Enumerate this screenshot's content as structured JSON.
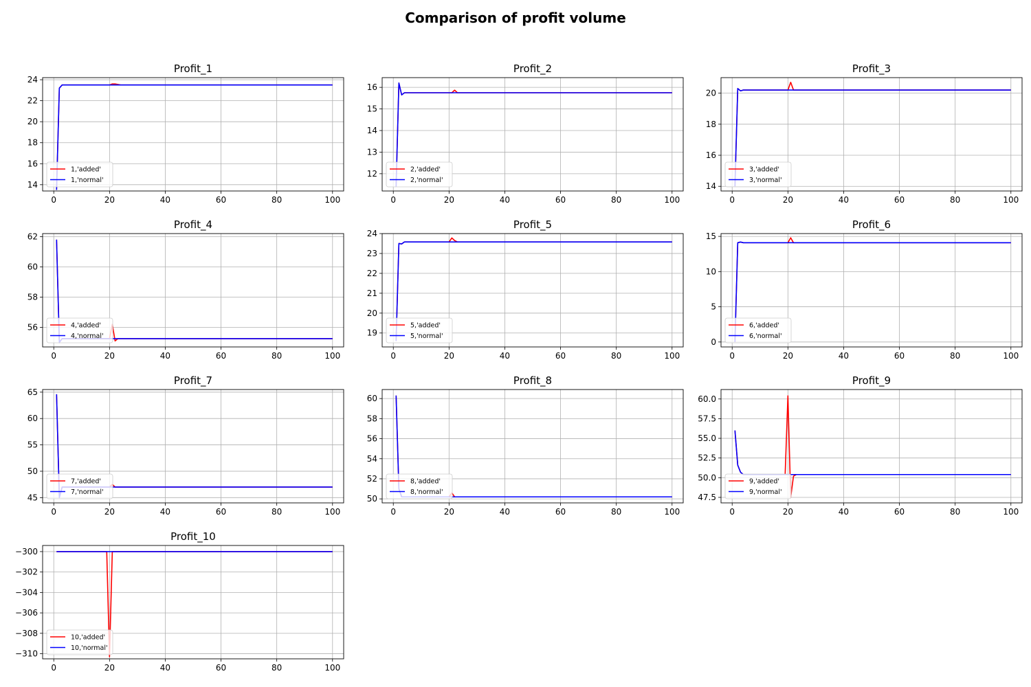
{
  "figure": {
    "title": "Comparison of profit volume"
  },
  "colors": {
    "added": "#ff0000",
    "normal": "#0000ff",
    "grid": "#b0b0b0"
  },
  "chart_data": [
    {
      "type": "line",
      "title": "Profit_1",
      "xlim": [
        -4,
        104
      ],
      "ylim": [
        13.4,
        24.2
      ],
      "xticks": [
        0,
        20,
        40,
        60,
        80,
        100
      ],
      "yticks": [
        14,
        16,
        18,
        20,
        22,
        24
      ],
      "grid": true,
      "legend_position": "lower left",
      "series": [
        {
          "name": "1,'added'",
          "color": "red",
          "points": [
            [
              1,
              13.5
            ],
            [
              2,
              23.2
            ],
            [
              3,
              23.5
            ],
            [
              20,
              23.5
            ],
            [
              21,
              23.6
            ],
            [
              22,
              23.6
            ],
            [
              24,
              23.5
            ],
            [
              100,
              23.5
            ]
          ]
        },
        {
          "name": "1,'normal'",
          "color": "blue",
          "points": [
            [
              1,
              13.5
            ],
            [
              2,
              23.2
            ],
            [
              3,
              23.5
            ],
            [
              100,
              23.5
            ]
          ]
        }
      ]
    },
    {
      "type": "line",
      "title": "Profit_2",
      "xlim": [
        -4,
        104
      ],
      "ylim": [
        11.2,
        16.45
      ],
      "xticks": [
        0,
        20,
        40,
        60,
        80,
        100
      ],
      "yticks": [
        12,
        13,
        14,
        15,
        16
      ],
      "grid": true,
      "legend_position": "lower left",
      "series": [
        {
          "name": "2,'added'",
          "color": "red",
          "points": [
            [
              1,
              11.4
            ],
            [
              2,
              16.2
            ],
            [
              3,
              15.65
            ],
            [
              4,
              15.75
            ],
            [
              21,
              15.75
            ],
            [
              22,
              15.87
            ],
            [
              23,
              15.75
            ],
            [
              100,
              15.75
            ]
          ]
        },
        {
          "name": "2,'normal'",
          "color": "blue",
          "points": [
            [
              1,
              11.4
            ],
            [
              2,
              16.2
            ],
            [
              3,
              15.65
            ],
            [
              4,
              15.75
            ],
            [
              100,
              15.75
            ]
          ]
        }
      ]
    },
    {
      "type": "line",
      "title": "Profit_3",
      "xlim": [
        -4,
        104
      ],
      "ylim": [
        13.7,
        21.0
      ],
      "xticks": [
        0,
        20,
        40,
        60,
        80,
        100
      ],
      "yticks": [
        14,
        16,
        18,
        20
      ],
      "grid": true,
      "legend_position": "lower left",
      "series": [
        {
          "name": "3,'added'",
          "color": "red",
          "points": [
            [
              1,
              14.0
            ],
            [
              2,
              20.3
            ],
            [
              3,
              20.15
            ],
            [
              4,
              20.2
            ],
            [
              20,
              20.2
            ],
            [
              21,
              20.7
            ],
            [
              22,
              20.2
            ],
            [
              100,
              20.2
            ]
          ]
        },
        {
          "name": "3,'normal'",
          "color": "blue",
          "points": [
            [
              1,
              14.0
            ],
            [
              2,
              20.3
            ],
            [
              3,
              20.15
            ],
            [
              4,
              20.2
            ],
            [
              100,
              20.2
            ]
          ]
        }
      ]
    },
    {
      "type": "line",
      "title": "Profit_4",
      "xlim": [
        -4,
        104
      ],
      "ylim": [
        54.7,
        62.2
      ],
      "xticks": [
        0,
        20,
        40,
        60,
        80,
        100
      ],
      "yticks": [
        56,
        58,
        60,
        62
      ],
      "grid": true,
      "legend_position": "lower left",
      "series": [
        {
          "name": "4,'added'",
          "color": "red",
          "points": [
            [
              1,
              61.8
            ],
            [
              2,
              55.0
            ],
            [
              3,
              55.25
            ],
            [
              20,
              55.25
            ],
            [
              21,
              56.2
            ],
            [
              22,
              55.1
            ],
            [
              23,
              55.25
            ],
            [
              100,
              55.25
            ]
          ]
        },
        {
          "name": "4,'normal'",
          "color": "blue",
          "points": [
            [
              1,
              61.8
            ],
            [
              2,
              55.0
            ],
            [
              3,
              55.25
            ],
            [
              100,
              55.25
            ]
          ]
        }
      ]
    },
    {
      "type": "line",
      "title": "Profit_5",
      "xlim": [
        -4,
        104
      ],
      "ylim": [
        18.3,
        24.0
      ],
      "xticks": [
        0,
        20,
        40,
        60,
        80,
        100
      ],
      "yticks": [
        19,
        20,
        21,
        22,
        23,
        24
      ],
      "grid": true,
      "legend_position": "lower left",
      "series": [
        {
          "name": "5,'added'",
          "color": "red",
          "points": [
            [
              1,
              18.6
            ],
            [
              2,
              23.5
            ],
            [
              3,
              23.48
            ],
            [
              4,
              23.58
            ],
            [
              20,
              23.58
            ],
            [
              21,
              23.78
            ],
            [
              22,
              23.65
            ],
            [
              23,
              23.58
            ],
            [
              100,
              23.58
            ]
          ]
        },
        {
          "name": "5,'normal'",
          "color": "blue",
          "points": [
            [
              1,
              18.6
            ],
            [
              2,
              23.5
            ],
            [
              3,
              23.48
            ],
            [
              4,
              23.58
            ],
            [
              100,
              23.58
            ]
          ]
        }
      ]
    },
    {
      "type": "line",
      "title": "Profit_6",
      "xlim": [
        -4,
        104
      ],
      "ylim": [
        -0.7,
        15.4
      ],
      "xticks": [
        0,
        20,
        40,
        60,
        80,
        100
      ],
      "yticks": [
        0,
        5,
        10,
        15
      ],
      "grid": true,
      "legend_position": "lower left",
      "series": [
        {
          "name": "6,'added'",
          "color": "red",
          "points": [
            [
              1,
              0.0
            ],
            [
              2,
              14.1
            ],
            [
              3,
              14.2
            ],
            [
              4,
              14.1
            ],
            [
              20,
              14.1
            ],
            [
              21,
              14.8
            ],
            [
              22,
              14.1
            ],
            [
              100,
              14.1
            ]
          ]
        },
        {
          "name": "6,'normal'",
          "color": "blue",
          "points": [
            [
              1,
              0.0
            ],
            [
              2,
              14.1
            ],
            [
              3,
              14.2
            ],
            [
              4,
              14.1
            ],
            [
              100,
              14.1
            ]
          ]
        }
      ]
    },
    {
      "type": "line",
      "title": "Profit_7",
      "xlim": [
        -4,
        104
      ],
      "ylim": [
        44.0,
        65.5
      ],
      "xticks": [
        0,
        20,
        40,
        60,
        80,
        100
      ],
      "yticks": [
        45,
        50,
        55,
        60,
        65
      ],
      "grid": true,
      "legend_position": "lower left",
      "series": [
        {
          "name": "7,'added'",
          "color": "red",
          "points": [
            [
              1,
              64.6
            ],
            [
              2,
              45.0
            ],
            [
              3,
              47.0
            ],
            [
              20,
              47.0
            ],
            [
              21,
              47.5
            ],
            [
              22,
              47.0
            ],
            [
              100,
              47.0
            ]
          ]
        },
        {
          "name": "7,'normal'",
          "color": "blue",
          "points": [
            [
              1,
              64.6
            ],
            [
              2,
              45.0
            ],
            [
              3,
              47.0
            ],
            [
              100,
              47.0
            ]
          ]
        }
      ]
    },
    {
      "type": "line",
      "title": "Profit_8",
      "xlim": [
        -4,
        104
      ],
      "ylim": [
        49.6,
        60.9
      ],
      "xticks": [
        0,
        20,
        40,
        60,
        80,
        100
      ],
      "yticks": [
        50,
        52,
        54,
        56,
        58,
        60
      ],
      "grid": true,
      "legend_position": "lower left",
      "series": [
        {
          "name": "8,'added'",
          "color": "red",
          "points": [
            [
              1,
              60.3
            ],
            [
              2,
              51.0
            ],
            [
              3,
              50.2
            ],
            [
              20,
              50.2
            ],
            [
              21,
              50.6
            ],
            [
              22,
              50.2
            ],
            [
              100,
              50.2
            ]
          ]
        },
        {
          "name": "8,'normal'",
          "color": "blue",
          "points": [
            [
              1,
              60.3
            ],
            [
              2,
              51.0
            ],
            [
              3,
              50.2
            ],
            [
              100,
              50.2
            ]
          ]
        }
      ]
    },
    {
      "type": "line",
      "title": "Profit_9",
      "xlim": [
        -4,
        104
      ],
      "ylim": [
        46.8,
        61.2
      ],
      "xticks": [
        0,
        20,
        40,
        60,
        80,
        100
      ],
      "yticks": [
        47.5,
        50.0,
        52.5,
        55.0,
        57.5,
        60.0
      ],
      "ytick_labels": [
        "47.5",
        "50.0",
        "52.5",
        "55.0",
        "57.5",
        "60.0"
      ],
      "grid": true,
      "legend_position": "lower left",
      "series": [
        {
          "name": "9,'added'",
          "color": "red",
          "points": [
            [
              1,
              56.0
            ],
            [
              2,
              51.6
            ],
            [
              3,
              50.7
            ],
            [
              4,
              50.4
            ],
            [
              19,
              50.4
            ],
            [
              20,
              60.4
            ],
            [
              21,
              47.5
            ],
            [
              22,
              50.2
            ],
            [
              23,
              50.4
            ],
            [
              100,
              50.4
            ]
          ]
        },
        {
          "name": "9,'normal'",
          "color": "blue",
          "points": [
            [
              1,
              56.0
            ],
            [
              2,
              51.6
            ],
            [
              3,
              50.7
            ],
            [
              4,
              50.4
            ],
            [
              100,
              50.4
            ]
          ]
        }
      ]
    },
    {
      "type": "line",
      "title": "Profit_10",
      "xlim": [
        -4,
        104
      ],
      "ylim": [
        -310.5,
        -299.4
      ],
      "xticks": [
        0,
        20,
        40,
        60,
        80,
        100
      ],
      "yticks": [
        -310,
        -308,
        -306,
        -304,
        -302,
        -300
      ],
      "ytick_labels": [
        "−310",
        "−308",
        "−306",
        "−304",
        "−302",
        "−300"
      ],
      "grid": true,
      "legend_position": "lower left",
      "series": [
        {
          "name": "10,'added'",
          "color": "red",
          "points": [
            [
              1,
              -300.0
            ],
            [
              19,
              -300.0
            ],
            [
              20,
              -310.3
            ],
            [
              21,
              -300.0
            ],
            [
              100,
              -300.0
            ]
          ]
        },
        {
          "name": "10,'normal'",
          "color": "blue",
          "points": [
            [
              1,
              -300.0
            ],
            [
              100,
              -300.0
            ]
          ]
        }
      ]
    }
  ]
}
